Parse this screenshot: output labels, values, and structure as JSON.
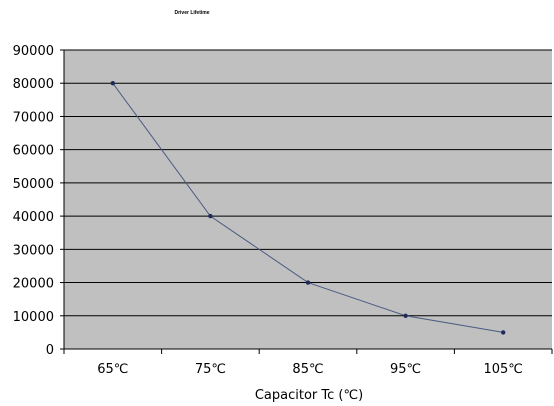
{
  "chart_data": {
    "type": "line",
    "title": "Driver Lifetime",
    "xlabel": "Capacitor Tc (℃)",
    "ylabel": "",
    "categories": [
      "65℃",
      "75℃",
      "85℃",
      "95℃",
      "105℃"
    ],
    "series": [
      {
        "values": [
          80000,
          40000,
          20000,
          10000,
          5000
        ]
      }
    ],
    "ylim": [
      0,
      90000
    ],
    "yticks": [
      "0",
      "10000",
      "20000",
      "30000",
      "40000",
      "50000",
      "60000",
      "70000",
      "80000",
      "90000"
    ],
    "grid": true,
    "legend": "none",
    "colors": {
      "plot_bg": "#c0c0c0",
      "line": "#4a5a82",
      "marker": "#1f2a5a",
      "grid": "#000000"
    }
  }
}
